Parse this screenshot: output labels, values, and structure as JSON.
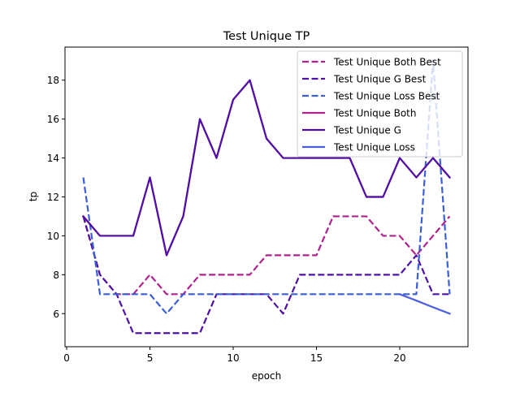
{
  "chart_data": {
    "type": "line",
    "title": "Test Unique TP",
    "xlabel": "epoch",
    "ylabel": "tp",
    "xlim": [
      -0.1,
      24.1
    ],
    "ylim": [
      4.3,
      19.7
    ],
    "xticks": [
      0,
      5,
      10,
      15,
      20
    ],
    "yticks": [
      6,
      8,
      10,
      12,
      14,
      16,
      18
    ],
    "grid": false,
    "legend_position": "top-right",
    "x": [
      1,
      2,
      3,
      4,
      5,
      6,
      7,
      8,
      9,
      10,
      11,
      12,
      13,
      14,
      15,
      16,
      17,
      18,
      19,
      20,
      21,
      22,
      23
    ],
    "series": [
      {
        "name": "Test Unique Both Best",
        "color": "#b0208f",
        "dash": "dashed",
        "values": [
          11,
          8,
          7,
          7,
          8,
          7,
          7,
          8,
          8,
          8,
          8,
          9,
          9,
          9,
          9,
          11,
          11,
          11,
          10,
          10,
          9,
          10,
          11
        ]
      },
      {
        "name": "Test Unique G Best",
        "color": "#5010a8",
        "dash": "dashed",
        "values": [
          11,
          8,
          7,
          5,
          5,
          5,
          5,
          5,
          7,
          7,
          7,
          7,
          6,
          8,
          8,
          8,
          8,
          8,
          8,
          8,
          9,
          7,
          7
        ]
      },
      {
        "name": "Test Unique Loss Best",
        "color": "#3a5fd8",
        "dash": "dashed",
        "values": [
          13,
          7,
          7,
          7,
          7,
          6,
          7,
          7,
          7,
          7,
          7,
          7,
          7,
          7,
          7,
          7,
          7,
          7,
          7,
          7,
          7,
          19,
          7
        ]
      },
      {
        "name": "Test Unique Both",
        "color": "#b0208f",
        "dash": "solid",
        "values": [
          11,
          10,
          10,
          10,
          13,
          9,
          11,
          16,
          14,
          17,
          18,
          15,
          14,
          14,
          14,
          14,
          14,
          12,
          12,
          14,
          13,
          14,
          13
        ]
      },
      {
        "name": "Test Unique G",
        "color": "#5010a8",
        "dash": "solid",
        "values": [
          11,
          10,
          10,
          10,
          13,
          9,
          11,
          16,
          14,
          17,
          18,
          15,
          14,
          14,
          14,
          14,
          14,
          12,
          12,
          14,
          13,
          14,
          13
        ]
      },
      {
        "name": "Test Unique Loss",
        "color": "#4a5ce0",
        "dash": "solid",
        "values": [
          null,
          null,
          null,
          null,
          null,
          null,
          null,
          null,
          null,
          null,
          null,
          null,
          null,
          null,
          null,
          null,
          null,
          null,
          null,
          7,
          6.67,
          6.33,
          6
        ]
      }
    ]
  }
}
